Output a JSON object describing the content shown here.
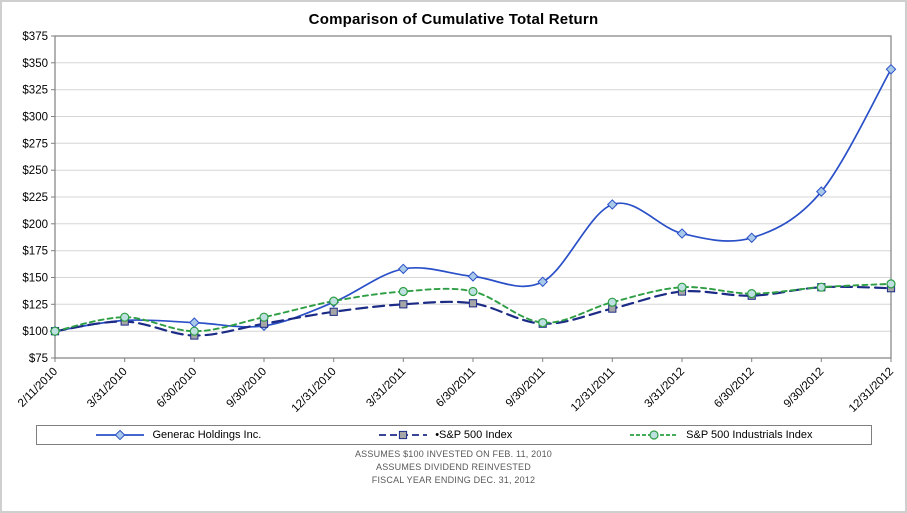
{
  "chart_data": {
    "type": "line",
    "title": "Comparison of Cumulative Total Return",
    "categories": [
      "2/11/2010",
      "3/31/2010",
      "6/30/2010",
      "9/30/2010",
      "12/31/2010",
      "3/31/2011",
      "6/30/2011",
      "9/30/2011",
      "12/31/2011",
      "3/31/2012",
      "6/30/2012",
      "9/30/2012",
      "12/31/2012"
    ],
    "series": [
      {
        "name": "Generac Holdings Inc.",
        "color": "#2a50c8",
        "marker": "diamond",
        "marker_fill": "#a9c9e8",
        "line_style": "solid",
        "values": [
          100,
          110,
          108,
          105,
          127,
          158,
          151,
          146,
          218,
          191,
          187,
          230,
          344
        ]
      },
      {
        "name": "•S&P 500 Index",
        "color": "#1c2c86",
        "marker": "square",
        "marker_fill": "#a6a6a6",
        "line_style": "long-dash",
        "values": [
          100,
          109,
          96,
          107,
          118,
          125,
          126,
          107,
          121,
          137,
          133,
          141,
          140
        ]
      },
      {
        "name": "S&P 500 Industrials Index",
        "color": "#2e9e44",
        "marker": "circle",
        "marker_fill": "#bfe0e0",
        "line_style": "short-dash",
        "values": [
          100,
          113,
          100,
          113,
          128,
          137,
          137,
          108,
          127,
          141,
          135,
          141,
          144
        ]
      }
    ],
    "ylim": [
      75,
      375
    ],
    "ytick_step": 25,
    "y_tick_labels": [
      "$75",
      "$100",
      "$125",
      "$150",
      "$175",
      "$200",
      "$225",
      "$250",
      "$275",
      "$300",
      "$325",
      "$350",
      "$375"
    ],
    "grid": true,
    "gridline_color": "#d6d6d6",
    "axis_color": "#808080",
    "legend_position": "bottom"
  },
  "footer": {
    "line1": "ASSUMES $100 INVESTED ON FEB. 11, 2010",
    "line2": "ASSUMES DIVIDEND REINVESTED",
    "line3": "FISCAL YEAR ENDING DEC. 31, 2012"
  }
}
